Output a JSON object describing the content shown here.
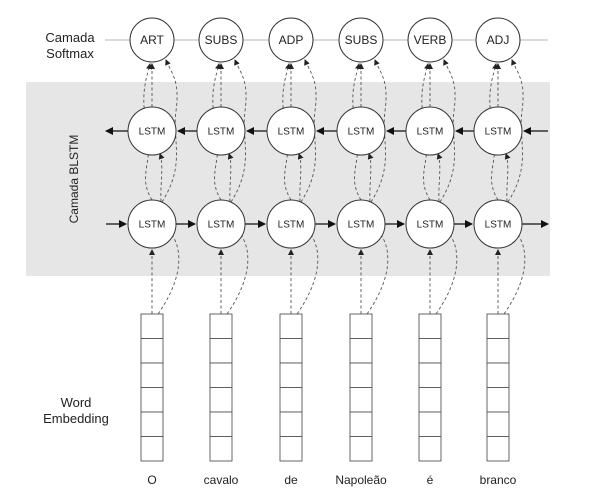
{
  "labels": {
    "softmax": [
      "Camada",
      "Softmax"
    ],
    "blstm": "Camada BLSTM",
    "embedding": [
      "Word",
      "Embedding"
    ]
  },
  "softmax_tags": [
    "ART",
    "SUBS",
    "ADP",
    "SUBS",
    "VERB",
    "ADJ"
  ],
  "cell_label": "LSTM",
  "words": [
    "O",
    "cavalo",
    "de",
    "Napoleão",
    "é",
    "branco"
  ],
  "embedding_cells_per_word": 6,
  "colors": {
    "band": "#e6e6e6",
    "stroke": "#4a4a4a",
    "node_fill": "#ffffff",
    "text": "#222222"
  }
}
